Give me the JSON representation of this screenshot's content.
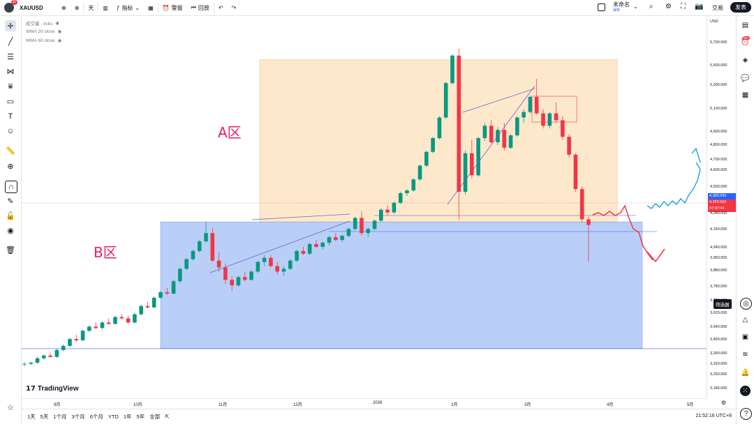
{
  "topbar": {
    "avatar_badge": "11",
    "symbol": "XAUUSD",
    "interval": "天",
    "indicators": "指标",
    "alert": "警报",
    "replay": "回放",
    "layout_name": "未命名",
    "layout_sub": "保存",
    "trade": "交易",
    "publish": "发表"
  },
  "legend": {
    "line1": "成交量 · ticks",
    "line2": "WMA 20 close",
    "line3": "WMA 60 close"
  },
  "annotations": {
    "zone_a": "A区",
    "zone_b": "B区"
  },
  "price_axis": {
    "currency": "USD",
    "ticks": [
      "5,700.000",
      "5,500.000",
      "5,300.000",
      "5,100.000",
      "4,900.000",
      "4,800.000",
      "4,700.000",
      "4,600.000",
      "4,500.000",
      "4,280.000",
      "4,160.000",
      "4,040.000",
      "3,960.000",
      "3,880.000",
      "3,780.000",
      "3,700.000",
      "3,620.000",
      "3,540.000",
      "3,460.000",
      "3,390.000",
      "3,320.000",
      "3,250.000",
      "3,186.000"
    ],
    "tag_a": "4,380.990",
    "tag_b": "4,359.560",
    "tag_c": "07:07:44"
  },
  "time_axis": {
    "ticks": [
      "9月",
      "10月",
      "11月",
      "12月",
      "2026",
      "2月",
      "3月",
      "4月",
      "5月"
    ]
  },
  "bottom": {
    "ranges": [
      "1天",
      "5天",
      "1个月",
      "3个月",
      "6个月",
      "YTD",
      "1年",
      "5年",
      "全部"
    ],
    "clock": "21:52:16 UTC+8"
  },
  "brand": "TradingView",
  "right_toolbar": {
    "badge": "99+",
    "filter_tip": "筛选器"
  },
  "colors": {
    "up": "#089981",
    "down": "#f23645",
    "zone_a": "#fde3c0",
    "zone_b": "#a9c4f7",
    "annot_red": "#f23645",
    "annot_blue": "#29a9e0"
  },
  "chart_data": {
    "type": "candlestick",
    "ylim": [
      3186,
      5800
    ],
    "candles": [
      [
        3345,
        3360,
        3330,
        3350
      ],
      [
        3350,
        3365,
        3340,
        3358
      ],
      [
        3358,
        3400,
        3350,
        3390
      ],
      [
        3390,
        3420,
        3380,
        3410
      ],
      [
        3410,
        3430,
        3395,
        3400
      ],
      [
        3400,
        3460,
        3395,
        3450
      ],
      [
        3450,
        3490,
        3440,
        3480
      ],
      [
        3480,
        3540,
        3470,
        3530
      ],
      [
        3530,
        3560,
        3510,
        3520
      ],
      [
        3520,
        3600,
        3515,
        3590
      ],
      [
        3590,
        3630,
        3580,
        3620
      ],
      [
        3620,
        3650,
        3600,
        3610
      ],
      [
        3610,
        3660,
        3600,
        3650
      ],
      [
        3650,
        3680,
        3630,
        3640
      ],
      [
        3640,
        3700,
        3635,
        3690
      ],
      [
        3690,
        3710,
        3670,
        3680
      ],
      [
        3680,
        3700,
        3640,
        3650
      ],
      [
        3650,
        3720,
        3645,
        3710
      ],
      [
        3710,
        3780,
        3700,
        3770
      ],
      [
        3770,
        3800,
        3750,
        3760
      ],
      [
        3760,
        3840,
        3755,
        3830
      ],
      [
        3830,
        3880,
        3820,
        3870
      ],
      [
        3870,
        3900,
        3850,
        3860
      ],
      [
        3860,
        3960,
        3855,
        3950
      ],
      [
        3950,
        4050,
        3940,
        4040
      ],
      [
        4040,
        4120,
        4030,
        4110
      ],
      [
        4110,
        4180,
        4100,
        4170
      ],
      [
        4170,
        4250,
        4160,
        4240
      ],
      [
        4240,
        4381,
        4230,
        4300
      ],
      [
        4300,
        4340,
        4090,
        4100
      ],
      [
        4100,
        4160,
        4020,
        4050
      ],
      [
        4050,
        4080,
        3930,
        3960
      ],
      [
        3960,
        3990,
        3880,
        3920
      ],
      [
        3920,
        3990,
        3910,
        3980
      ],
      [
        3980,
        4020,
        3950,
        3960
      ],
      [
        3960,
        4030,
        3955,
        4020
      ],
      [
        4020,
        4100,
        4010,
        4090
      ],
      [
        4090,
        4140,
        4060,
        4120
      ],
      [
        4120,
        4140,
        4050,
        4060
      ],
      [
        4060,
        4090,
        4000,
        4020
      ],
      [
        4020,
        4060,
        3990,
        4040
      ],
      [
        4040,
        4110,
        4030,
        4100
      ],
      [
        4100,
        4180,
        4090,
        4170
      ],
      [
        4170,
        4200,
        4140,
        4150
      ],
      [
        4150,
        4230,
        4140,
        4220
      ],
      [
        4220,
        4250,
        4190,
        4200
      ],
      [
        4200,
        4240,
        4180,
        4230
      ],
      [
        4230,
        4280,
        4210,
        4270
      ],
      [
        4270,
        4300,
        4240,
        4250
      ],
      [
        4250,
        4290,
        4235,
        4280
      ],
      [
        4280,
        4340,
        4270,
        4330
      ],
      [
        4330,
        4420,
        4320,
        4410
      ],
      [
        4410,
        4460,
        4280,
        4300
      ],
      [
        4300,
        4340,
        4270,
        4330
      ],
      [
        4330,
        4400,
        4320,
        4390
      ],
      [
        4390,
        4480,
        4380,
        4470
      ],
      [
        4470,
        4500,
        4430,
        4450
      ],
      [
        4450,
        4530,
        4440,
        4520
      ],
      [
        4520,
        4600,
        4510,
        4590
      ],
      [
        4590,
        4620,
        4570,
        4610
      ],
      [
        4610,
        4700,
        4600,
        4690
      ],
      [
        4690,
        4800,
        4680,
        4790
      ],
      [
        4790,
        4900,
        4780,
        4890
      ],
      [
        4890,
        5000,
        4880,
        4990
      ],
      [
        4990,
        5150,
        4980,
        5140
      ],
      [
        5140,
        5400,
        5130,
        5390
      ],
      [
        5390,
        5600,
        5380,
        5590
      ],
      [
        5590,
        5640,
        4400,
        4600
      ],
      [
        4600,
        4900,
        4580,
        4880
      ],
      [
        4880,
        4980,
        4700,
        4720
      ],
      [
        4720,
        5000,
        4710,
        4990
      ],
      [
        4990,
        5100,
        4970,
        5080
      ],
      [
        5080,
        5120,
        4950,
        4960
      ],
      [
        4960,
        5070,
        4940,
        5050
      ],
      [
        5050,
        5100,
        4900,
        4920
      ],
      [
        4920,
        5020,
        4910,
        5010
      ],
      [
        5010,
        5150,
        5000,
        5140
      ],
      [
        5140,
        5200,
        5100,
        5180
      ],
      [
        5180,
        5300,
        5170,
        5290
      ],
      [
        5290,
        5420,
        5160,
        5170
      ],
      [
        5170,
        5200,
        5060,
        5080
      ],
      [
        5080,
        5180,
        5060,
        5170
      ],
      [
        5170,
        5250,
        5100,
        5120
      ],
      [
        5120,
        5150,
        4980,
        5000
      ],
      [
        5000,
        5020,
        4850,
        4870
      ],
      [
        4870,
        4880,
        4600,
        4620
      ],
      [
        4620,
        4640,
        4380,
        4400
      ],
      [
        4400,
        4420,
        4090,
        4359
      ]
    ],
    "zones": [
      {
        "name": "A区",
        "y": [
          4381,
          5560
        ]
      },
      {
        "name": "B区",
        "y": [
          3460,
          4381
        ]
      }
    ]
  }
}
